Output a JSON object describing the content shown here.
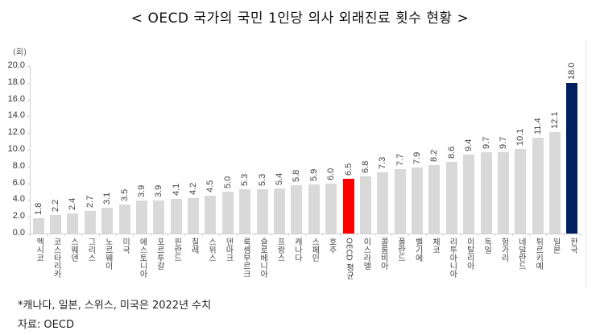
{
  "title": "< OECD 국가의 국민 1인당 의사 외래진료 횟수 현황 >",
  "unit_label": "(회)",
  "footnote": "*캐나다, 일본, 스위스, 미국은 2022년 수치",
  "source": "자료: OECD",
  "colors": {
    "default_bar": "#d9d9d9",
    "oecd_average_bar": "#ff0000",
    "korea_bar": "#002060"
  },
  "chart_data": {
    "type": "bar",
    "title": "< OECD 국가의 국민 1인당 의사 외래진료 횟수 현황 >",
    "xlabel": "",
    "ylabel": "(회)",
    "ylim": [
      0,
      20
    ],
    "yticks": [
      "0.0",
      "2.0",
      "4.0",
      "6.0",
      "8.0",
      "10.0",
      "12.0",
      "14.0",
      "16.0",
      "18.0",
      "20.0"
    ],
    "grid": false,
    "legend": null,
    "data_labels": true,
    "categories": [
      "멕시코",
      "코스타리카",
      "스웨덴",
      "그리스",
      "노르웨이",
      "미국",
      "에스토니아",
      "포르투갈",
      "핀란드",
      "칠레",
      "스위스",
      "덴마크",
      "룩셈부르크",
      "슬로베니아",
      "프랑스",
      "캐나다",
      "스페인",
      "호주",
      "OECD 평균",
      "이스라엘",
      "콜롬비아",
      "폴란드",
      "벨기에",
      "체코",
      "리투아니아",
      "이탈리아",
      "독일",
      "헝가리",
      "네덜란드",
      "튀르키예",
      "일본",
      "한국"
    ],
    "values": [
      1.8,
      2.2,
      2.4,
      2.7,
      3.1,
      3.5,
      3.9,
      3.9,
      4.1,
      4.2,
      4.5,
      5.0,
      5.3,
      5.3,
      5.4,
      5.8,
      5.9,
      6.0,
      6.5,
      6.8,
      7.3,
      7.7,
      7.9,
      8.2,
      8.6,
      9.4,
      9.7,
      9.7,
      10.1,
      11.4,
      12.1,
      18.0
    ],
    "value_labels": [
      "1.8",
      "2.2",
      "2.4",
      "2.7",
      "3.1",
      "3.5",
      "3.9",
      "3.9",
      "4.1",
      "4.2",
      "4.5",
      "5.0",
      "5.3",
      "5.3",
      "5.4",
      "5.8",
      "5.9",
      "6.0",
      "6.5",
      "6.8",
      "7.3",
      "7.7",
      "7.9",
      "8.2",
      "8.6",
      "9.4",
      "9.7",
      "9.7",
      "10.1",
      "11.4",
      "12.1",
      "18.0"
    ],
    "highlights": {
      "OECD 평균": "#ff0000",
      "한국": "#002060"
    }
  }
}
